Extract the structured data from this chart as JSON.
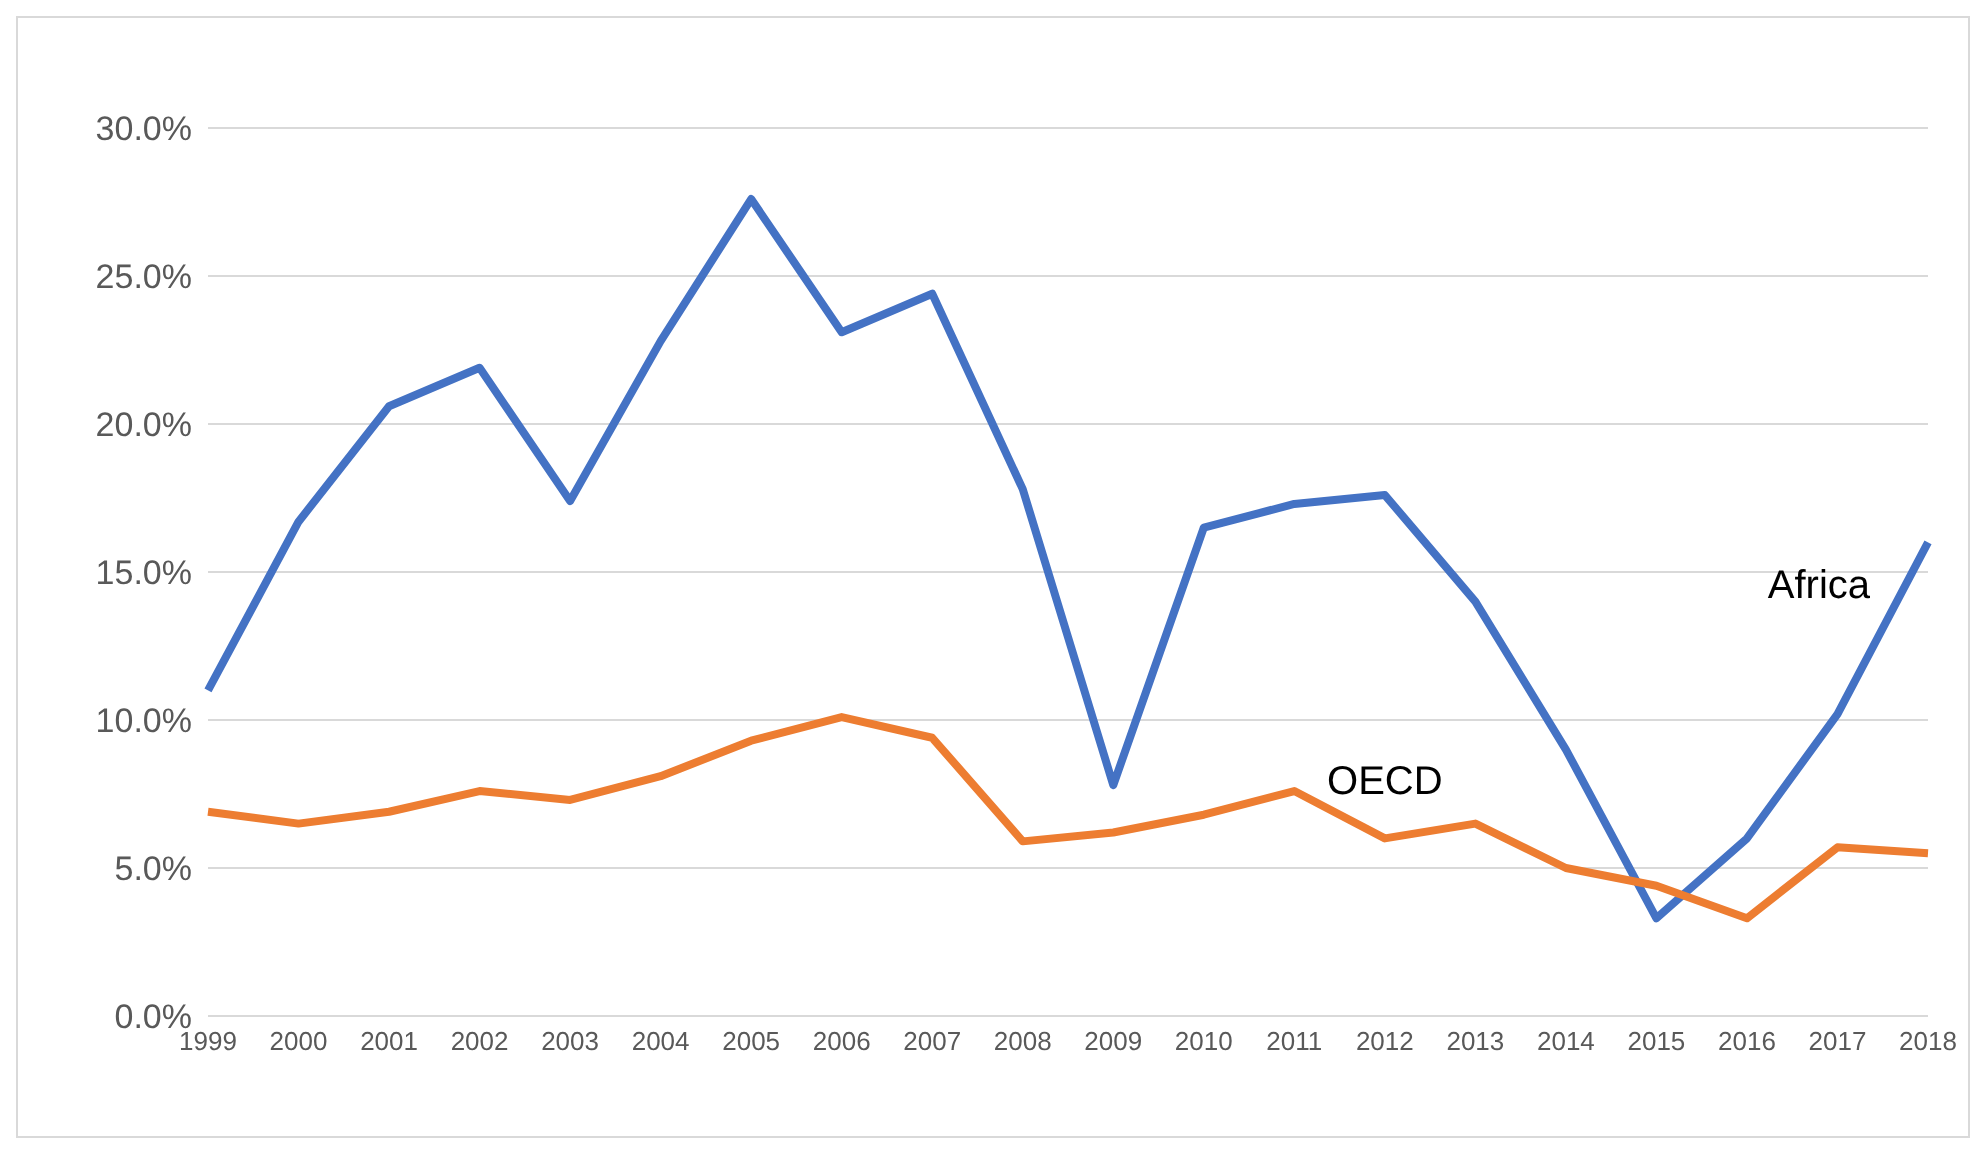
{
  "chart_data": {
    "type": "line",
    "categories": [
      "1999",
      "2000",
      "2001",
      "2002",
      "2003",
      "2004",
      "2005",
      "2006",
      "2007",
      "2008",
      "2009",
      "2010",
      "2011",
      "2012",
      "2013",
      "2014",
      "2015",
      "2016",
      "2017",
      "2018"
    ],
    "series": [
      {
        "name": "Africa",
        "color": "#4472c4",
        "values": [
          11.0,
          16.7,
          20.6,
          21.9,
          17.4,
          22.8,
          27.6,
          23.1,
          24.4,
          17.8,
          7.8,
          16.5,
          17.3,
          17.6,
          14.0,
          9.0,
          3.3,
          6.0,
          10.2,
          16.0
        ]
      },
      {
        "name": "OECD",
        "color": "#ed7d31",
        "values": [
          6.9,
          6.5,
          6.9,
          7.6,
          7.3,
          8.1,
          9.3,
          10.1,
          9.4,
          5.9,
          6.2,
          6.8,
          7.6,
          6.0,
          6.5,
          5.0,
          4.4,
          3.3,
          5.7,
          5.5
        ]
      }
    ],
    "ylim": [
      0,
      30
    ],
    "yticks": [
      {
        "value": 0,
        "label": "0.0%"
      },
      {
        "value": 5,
        "label": "5.0%"
      },
      {
        "value": 10,
        "label": "10.0%"
      },
      {
        "value": 15,
        "label": "15.0%"
      },
      {
        "value": 20,
        "label": "20.0%"
      },
      {
        "value": 25,
        "label": "25.0%"
      },
      {
        "value": 30,
        "label": "30.0%"
      }
    ],
    "grid": "y",
    "legend": false,
    "marker": "none",
    "line_style": "solid"
  }
}
